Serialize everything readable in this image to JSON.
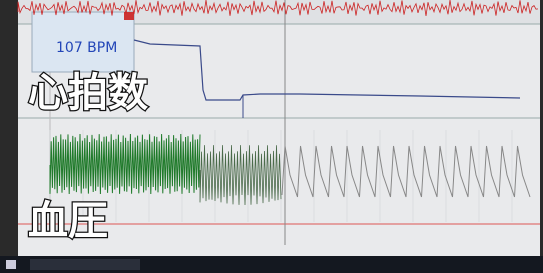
{
  "monitor": {
    "readout": "107 BPM"
  },
  "captions": {
    "heart_rate": "心拍数",
    "blood_pressure": "血圧"
  }
}
